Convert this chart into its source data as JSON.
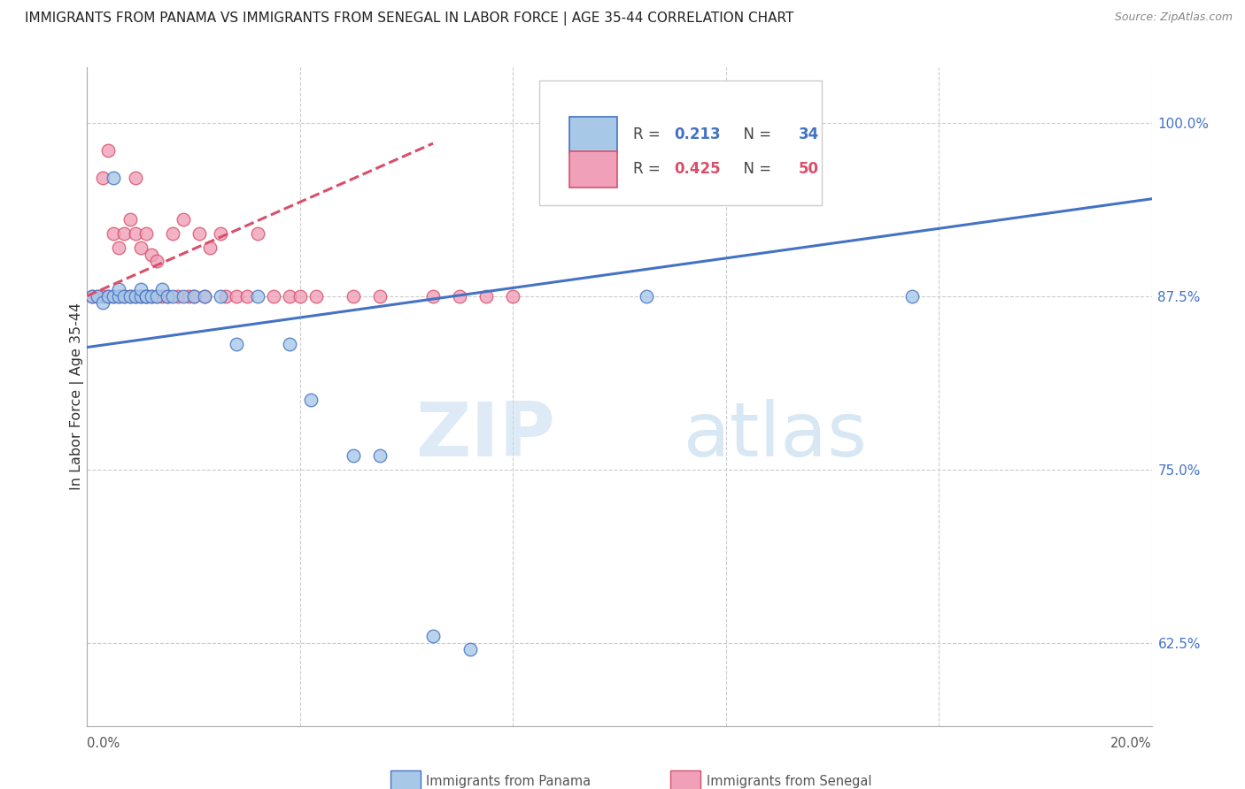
{
  "title": "IMMIGRANTS FROM PANAMA VS IMMIGRANTS FROM SENEGAL IN LABOR FORCE | AGE 35-44 CORRELATION CHART",
  "source": "Source: ZipAtlas.com",
  "ylabel": "In Labor Force | Age 35-44",
  "yticks": [
    0.625,
    0.75,
    0.875,
    1.0
  ],
  "ytick_labels": [
    "62.5%",
    "75.0%",
    "87.5%",
    "100.0%"
  ],
  "xlim": [
    0.0,
    0.2
  ],
  "ylim": [
    0.565,
    1.04
  ],
  "legend_r1": "R = ",
  "legend_r1_val": "0.213",
  "legend_n1": "N = ",
  "legend_n1_val": "34",
  "legend_r2": "R = ",
  "legend_r2_val": "0.425",
  "legend_n2": "N = ",
  "legend_n2_val": "50",
  "panama_color": "#A8C8E8",
  "senegal_color": "#F0A0B8",
  "panama_line_color": "#4472C4",
  "senegal_line_color": "#D94F6B",
  "watermark_zip": "ZIP",
  "watermark_atlas": "atlas",
  "panama_x": [
    0.001,
    0.002,
    0.003,
    0.004,
    0.005,
    0.005,
    0.006,
    0.006,
    0.007,
    0.008,
    0.009,
    0.01,
    0.01,
    0.011,
    0.011,
    0.012,
    0.013,
    0.014,
    0.015,
    0.016,
    0.018,
    0.02,
    0.022,
    0.025,
    0.028,
    0.032,
    0.038,
    0.042,
    0.05,
    0.055,
    0.065,
    0.072,
    0.105,
    0.155
  ],
  "panama_y": [
    0.875,
    0.875,
    0.87,
    0.875,
    0.875,
    0.96,
    0.875,
    0.88,
    0.875,
    0.875,
    0.875,
    0.875,
    0.88,
    0.875,
    0.875,
    0.875,
    0.875,
    0.88,
    0.875,
    0.875,
    0.875,
    0.875,
    0.875,
    0.875,
    0.84,
    0.875,
    0.84,
    0.8,
    0.76,
    0.76,
    0.63,
    0.62,
    0.875,
    0.875
  ],
  "senegal_x": [
    0.001,
    0.002,
    0.003,
    0.003,
    0.004,
    0.004,
    0.005,
    0.005,
    0.006,
    0.006,
    0.007,
    0.007,
    0.008,
    0.008,
    0.009,
    0.009,
    0.009,
    0.01,
    0.01,
    0.011,
    0.011,
    0.012,
    0.012,
    0.013,
    0.013,
    0.014,
    0.015,
    0.016,
    0.017,
    0.018,
    0.019,
    0.02,
    0.021,
    0.022,
    0.023,
    0.025,
    0.026,
    0.028,
    0.03,
    0.032,
    0.035,
    0.038,
    0.04,
    0.043,
    0.05,
    0.055,
    0.065,
    0.07,
    0.075,
    0.08
  ],
  "senegal_y": [
    0.875,
    0.875,
    0.875,
    0.96,
    0.875,
    0.98,
    0.875,
    0.92,
    0.875,
    0.91,
    0.875,
    0.92,
    0.875,
    0.93,
    0.875,
    0.92,
    0.96,
    0.875,
    0.91,
    0.875,
    0.92,
    0.875,
    0.905,
    0.875,
    0.9,
    0.875,
    0.875,
    0.92,
    0.875,
    0.93,
    0.875,
    0.875,
    0.92,
    0.875,
    0.91,
    0.92,
    0.875,
    0.875,
    0.875,
    0.92,
    0.875,
    0.875,
    0.875,
    0.875,
    0.875,
    0.875,
    0.875,
    0.875,
    0.875,
    0.875
  ]
}
